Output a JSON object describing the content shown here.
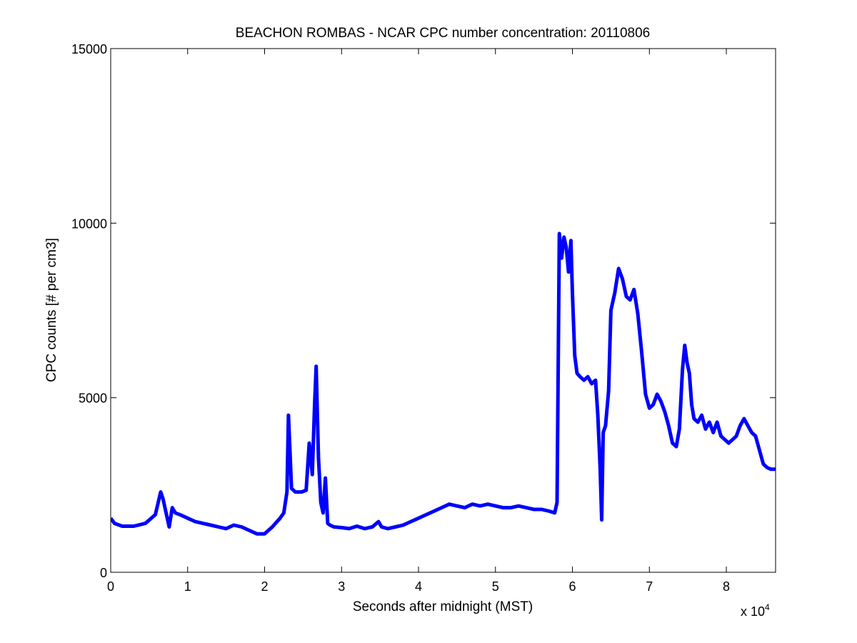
{
  "chart_data": {
    "type": "line",
    "title": "BEACHON ROMBAS - NCAR CPC number concentration: 20110806",
    "xlabel": "Seconds after midnight (MST)",
    "ylabel": "CPC counts [# per cm3]",
    "x_multiplier": "x 10",
    "x_multiplier_exp": "4",
    "xlim": [
      0,
      86400
    ],
    "ylim": [
      0,
      15000
    ],
    "xticks": [
      0,
      10000,
      20000,
      30000,
      40000,
      50000,
      60000,
      70000,
      80000
    ],
    "xtick_labels": [
      "0",
      "1",
      "2",
      "3",
      "4",
      "5",
      "6",
      "7",
      "8"
    ],
    "yticks": [
      0,
      5000,
      10000,
      15000
    ],
    "ytick_labels": [
      "0",
      "5000",
      "10000",
      "15000"
    ],
    "grid": false,
    "series": [
      {
        "color": "#0000ff",
        "x": [
          0,
          500,
          1500,
          3000,
          4500,
          5800,
          6500,
          6800,
          7100,
          7600,
          8000,
          8400,
          9000,
          10000,
          11000,
          12000,
          13000,
          14000,
          15000,
          16000,
          17000,
          18000,
          19000,
          20000,
          21000,
          22000,
          22500,
          22900,
          23100,
          23500,
          24000,
          24800,
          25400,
          25800,
          26200,
          26500,
          26700,
          27000,
          27300,
          27600,
          27900,
          28200,
          28500,
          29000,
          30000,
          31000,
          32000,
          33000,
          34000,
          34800,
          35200,
          36000,
          37000,
          38000,
          39000,
          40000,
          41000,
          42000,
          43000,
          44000,
          45000,
          46000,
          47000,
          48000,
          49000,
          50000,
          51000,
          52000,
          53000,
          54000,
          55000,
          56000,
          57000,
          57700,
          58000,
          58300,
          58600,
          58900,
          59200,
          59500,
          59800,
          60000,
          60300,
          60600,
          61000,
          61500,
          62000,
          62500,
          63000,
          63300,
          63600,
          63800,
          64000,
          64300,
          64700,
          65000,
          65500,
          66000,
          66500,
          67000,
          67500,
          68000,
          68500,
          69000,
          69500,
          70000,
          70500,
          71000,
          71500,
          72000,
          72500,
          73000,
          73500,
          73900,
          74300,
          74600,
          74900,
          75200,
          75500,
          75800,
          76300,
          76800,
          77300,
          77800,
          78300,
          78800,
          79300,
          79800,
          80300,
          80800,
          81300,
          81800,
          82300,
          82800,
          83300,
          83800,
          84300,
          84800,
          85300,
          85800,
          86400
        ],
        "values": [
          1550,
          1400,
          1320,
          1320,
          1400,
          1650,
          2300,
          2100,
          1800,
          1300,
          1850,
          1700,
          1650,
          1550,
          1450,
          1400,
          1350,
          1300,
          1250,
          1350,
          1300,
          1200,
          1100,
          1100,
          1300,
          1550,
          1700,
          2300,
          4500,
          2400,
          2300,
          2300,
          2350,
          3700,
          2800,
          4800,
          5900,
          3300,
          2000,
          1700,
          2700,
          1400,
          1350,
          1300,
          1280,
          1250,
          1320,
          1250,
          1300,
          1450,
          1300,
          1250,
          1300,
          1350,
          1450,
          1550,
          1650,
          1750,
          1850,
          1950,
          1900,
          1850,
          1950,
          1900,
          1950,
          1900,
          1850,
          1850,
          1900,
          1850,
          1800,
          1800,
          1750,
          1700,
          2000,
          9700,
          9000,
          9600,
          9300,
          8600,
          9500,
          8000,
          6200,
          5700,
          5600,
          5500,
          5600,
          5400,
          5500,
          4500,
          3000,
          1500,
          4000,
          4200,
          5200,
          7500,
          8000,
          8700,
          8400,
          7900,
          7800,
          8100,
          7400,
          6300,
          5100,
          4700,
          4800,
          5100,
          4900,
          4600,
          4200,
          3700,
          3600,
          4100,
          5800,
          6500,
          6000,
          5700,
          4800,
          4400,
          4300,
          4500,
          4100,
          4300,
          4000,
          4300,
          3900,
          3800,
          3700,
          3800,
          3900,
          4200,
          4400,
          4200,
          4000,
          3900,
          3500,
          3100,
          3000,
          2950,
          2950
        ]
      }
    ]
  }
}
